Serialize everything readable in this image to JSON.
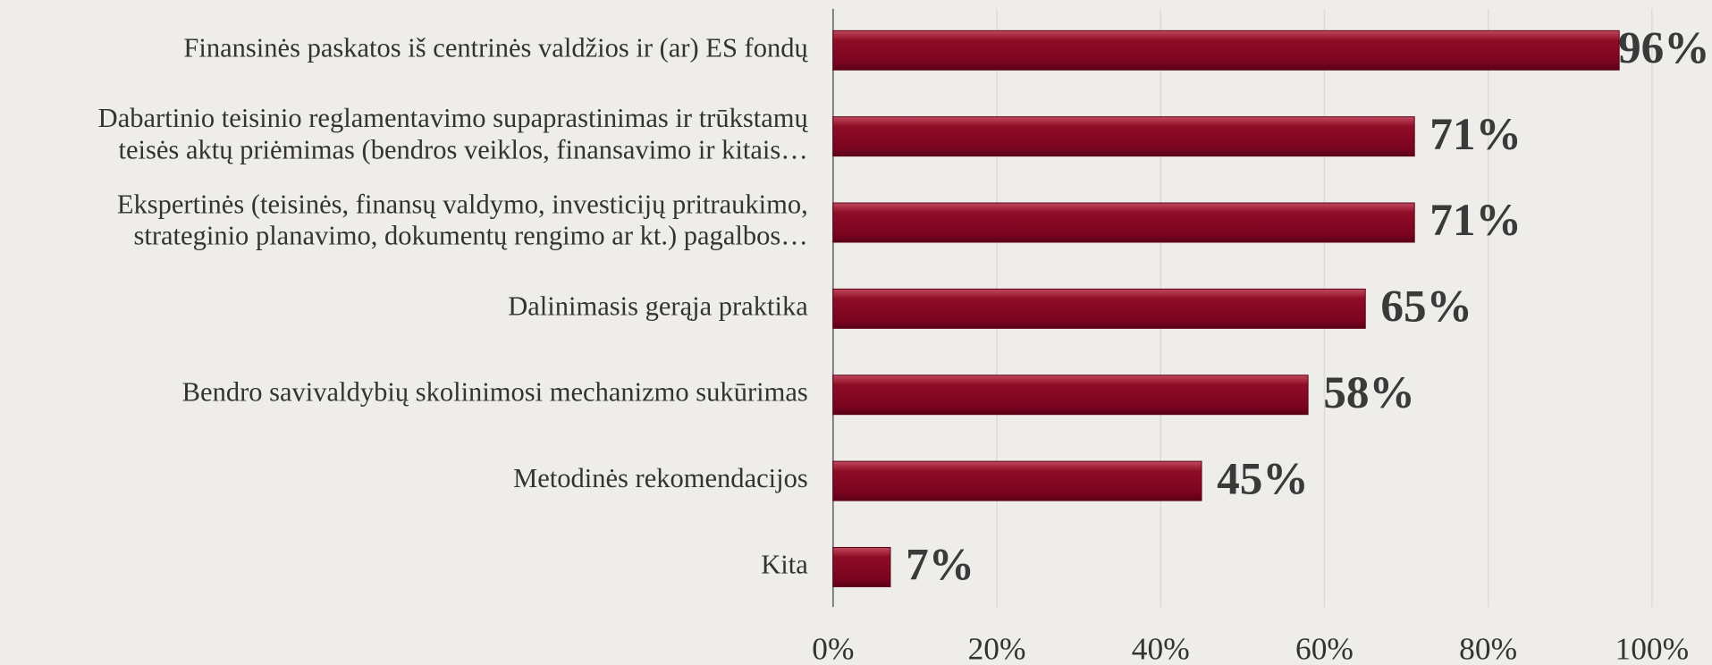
{
  "chart_data": {
    "type": "bar",
    "orientation": "horizontal",
    "categories": [
      [
        "Finansinės paskatos iš centrinės valdžios ir (ar) ES fondų"
      ],
      [
        "Dabartinio teisinio reglamentavimo supaprastinimas ir trūkstamų",
        "teisės aktų priėmimas (bendros veiklos, finansavimo ir kitais…"
      ],
      [
        "Ekspertinės (teisinės, finansų valdymo, investicijų pritraukimo,",
        "strateginio planavimo, dokumentų rengimo ar kt.) pagalbos…"
      ],
      [
        "Dalinimasis gerąja praktika"
      ],
      [
        "Bendro savivaldybių skolinimosi mechanizmo sukūrimas"
      ],
      [
        "Metodinės rekomendacijos"
      ],
      [
        "Kita"
      ]
    ],
    "values": [
      96,
      71,
      71,
      65,
      58,
      45,
      7
    ],
    "value_labels": [
      "96%",
      "71%",
      "71%",
      "65%",
      "58%",
      "45%",
      "7%"
    ],
    "color": "#8a0a24",
    "xlim": [
      0,
      100
    ],
    "xticks": [
      {
        "value": 0,
        "label": "0%"
      },
      {
        "value": 20,
        "label": "20%"
      },
      {
        "value": 40,
        "label": "40%"
      },
      {
        "value": 60,
        "label": "60%"
      },
      {
        "value": 80,
        "label": "80%"
      },
      {
        "value": 100,
        "label": "100%"
      }
    ],
    "grid": true
  }
}
